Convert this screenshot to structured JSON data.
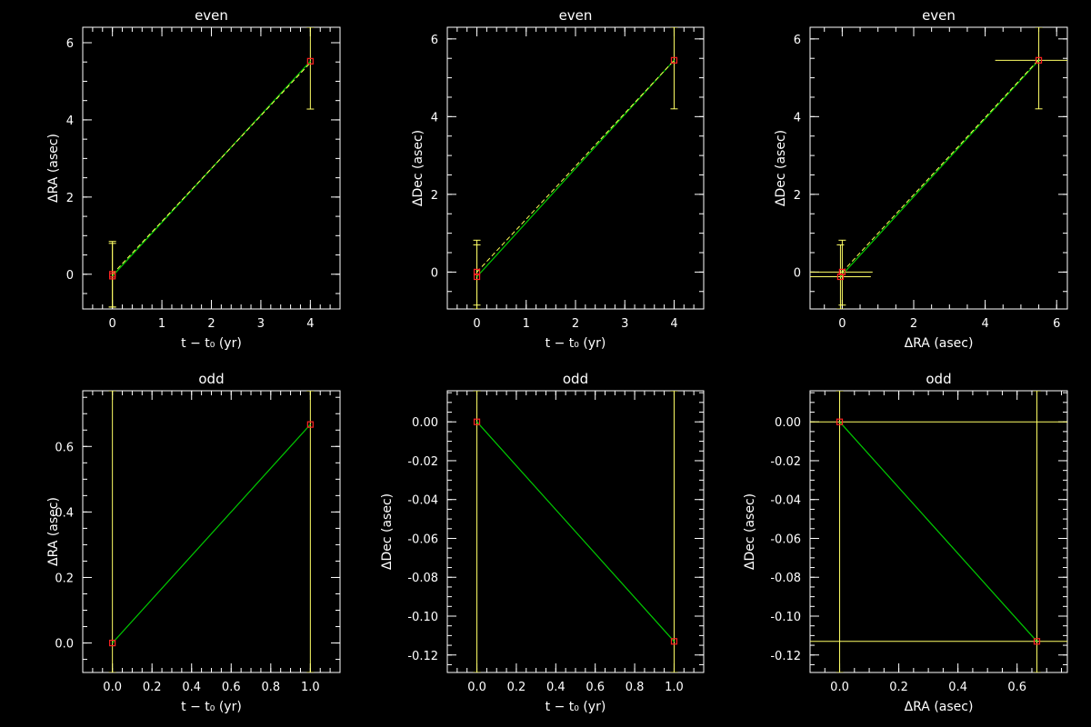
{
  "colors": {
    "background": "#000000",
    "axes": "#ffffff",
    "text": "#ffffff",
    "fit_line": "#00cc00",
    "dashed_line": "#ffff55",
    "error_bar": "#ffff66",
    "marker": "#ff2222"
  },
  "chart_data": [
    {
      "type": "scatter",
      "title": "even",
      "xlabel": "t − t₀ (yr)",
      "ylabel": "ΔRA (asec)",
      "xlim": [
        -0.6,
        4.6
      ],
      "ylim": [
        -0.9,
        6.4
      ],
      "x_ticks": [
        0,
        1,
        2,
        3,
        4
      ],
      "x_tick_labels": [
        "0",
        "1",
        "2",
        "3",
        "4"
      ],
      "x_minor_step": 0.2,
      "y_ticks": [
        0,
        2,
        4,
        6
      ],
      "y_tick_labels": [
        "0",
        "2",
        "4",
        "6"
      ],
      "y_minor_step": 0.5,
      "points": [
        {
          "x": 0,
          "y": -0.05,
          "yerr_lo": -0.85,
          "yerr_hi": 0.8
        },
        {
          "x": 0,
          "y": 0.0,
          "yerr_lo": -0.85,
          "yerr_hi": 0.85
        },
        {
          "x": 4,
          "y": 5.52,
          "yerr_lo": 4.28,
          "yerr_hi": 6.4
        }
      ],
      "fit_line": [
        [
          0,
          -0.05
        ],
        [
          4,
          5.52
        ]
      ],
      "dashed_line": [
        [
          0,
          0.0
        ],
        [
          4,
          5.48
        ]
      ]
    },
    {
      "type": "scatter",
      "title": "even",
      "xlabel": "t − t₀ (yr)",
      "ylabel": "ΔDec (asec)",
      "xlim": [
        -0.6,
        4.6
      ],
      "ylim": [
        -0.95,
        6.3
      ],
      "x_ticks": [
        0,
        1,
        2,
        3,
        4
      ],
      "x_tick_labels": [
        "0",
        "1",
        "2",
        "3",
        "4"
      ],
      "x_minor_step": 0.2,
      "y_ticks": [
        0,
        2,
        4,
        6
      ],
      "y_tick_labels": [
        "0",
        "2",
        "4",
        "6"
      ],
      "y_minor_step": 0.5,
      "points": [
        {
          "x": 0,
          "y": -0.12,
          "yerr_lo": -0.95,
          "yerr_hi": 0.7
        },
        {
          "x": 0,
          "y": 0.0,
          "yerr_lo": -0.85,
          "yerr_hi": 0.82
        },
        {
          "x": 4,
          "y": 5.45,
          "yerr_lo": 4.2,
          "yerr_hi": 6.3
        }
      ],
      "fit_line": [
        [
          0,
          -0.12
        ],
        [
          4,
          5.45
        ]
      ],
      "dashed_line": [
        [
          0,
          0.0
        ],
        [
          4,
          5.45
        ]
      ]
    },
    {
      "type": "scatter",
      "title": "even",
      "xlabel": "ΔRA (asec)",
      "ylabel": "ΔDec (asec)",
      "xlim": [
        -0.9,
        6.3
      ],
      "ylim": [
        -0.95,
        6.3
      ],
      "x_ticks": [
        0,
        2,
        4,
        6
      ],
      "x_tick_labels": [
        "0",
        "2",
        "4",
        "6"
      ],
      "x_minor_step": 0.5,
      "y_ticks": [
        0,
        2,
        4,
        6
      ],
      "y_tick_labels": [
        "0",
        "2",
        "4",
        "6"
      ],
      "y_minor_step": 0.5,
      "points": [
        {
          "x": -0.05,
          "y": -0.12,
          "xerr_lo": -0.9,
          "xerr_hi": 0.8,
          "yerr_lo": -0.95,
          "yerr_hi": 0.7
        },
        {
          "x": 0.0,
          "y": 0.0,
          "xerr_lo": -0.9,
          "xerr_hi": 0.85,
          "yerr_lo": -0.85,
          "yerr_hi": 0.82
        },
        {
          "x": 5.5,
          "y": 5.45,
          "xerr_lo": 4.28,
          "xerr_hi": 6.3,
          "yerr_lo": 4.2,
          "yerr_hi": 6.3
        }
      ],
      "fit_line": [
        [
          -0.05,
          -0.12
        ],
        [
          5.5,
          5.45
        ]
      ],
      "dashed_line": [
        [
          0.0,
          0.0
        ],
        [
          5.48,
          5.45
        ]
      ]
    },
    {
      "type": "scatter",
      "title": "odd",
      "xlabel": "t − t₀ (yr)",
      "ylabel": "ΔRA (asec)",
      "xlim": [
        -0.15,
        1.15
      ],
      "ylim": [
        -0.09,
        0.77
      ],
      "x_ticks": [
        0.0,
        0.2,
        0.4,
        0.6,
        0.8,
        1.0
      ],
      "x_tick_labels": [
        "0.0",
        "0.2",
        "0.4",
        "0.6",
        "0.8",
        "1.0"
      ],
      "x_minor_step": 0.05,
      "y_ticks": [
        0.0,
        0.2,
        0.4,
        0.6
      ],
      "y_tick_labels": [
        "0.0",
        "0.2",
        "0.4",
        "0.6"
      ],
      "y_minor_step": 0.05,
      "points": [
        {
          "x": 0.0,
          "y": 0.0,
          "yerr_lo": -0.09,
          "yerr_hi": 0.77
        },
        {
          "x": 1.0,
          "y": 0.667,
          "yerr_lo": -0.09,
          "yerr_hi": 0.77
        }
      ],
      "fit_line": [
        [
          0.0,
          0.0
        ],
        [
          1.0,
          0.667
        ]
      ],
      "dashed_line": []
    },
    {
      "type": "scatter",
      "title": "odd",
      "xlabel": "t − t₀ (yr)",
      "ylabel": "ΔDec (asec)",
      "xlim": [
        -0.15,
        1.15
      ],
      "ylim": [
        -0.129,
        0.016
      ],
      "x_ticks": [
        0.0,
        0.2,
        0.4,
        0.6,
        0.8,
        1.0
      ],
      "x_tick_labels": [
        "0.0",
        "0.2",
        "0.4",
        "0.6",
        "0.8",
        "1.0"
      ],
      "x_minor_step": 0.05,
      "y_ticks": [
        0.0,
        -0.02,
        -0.04,
        -0.06,
        -0.08,
        -0.1,
        -0.12
      ],
      "y_tick_labels": [
        "0.00",
        "-0.02",
        "-0.04",
        "-0.06",
        "-0.08",
        "-0.10",
        "-0.12"
      ],
      "y_minor_step": 0.005,
      "points": [
        {
          "x": 0.0,
          "y": 0.0,
          "yerr_lo": -0.129,
          "yerr_hi": 0.016
        },
        {
          "x": 1.0,
          "y": -0.113,
          "yerr_lo": -0.129,
          "yerr_hi": 0.016
        }
      ],
      "fit_line": [
        [
          0.0,
          0.0
        ],
        [
          1.0,
          -0.113
        ]
      ],
      "dashed_line": []
    },
    {
      "type": "scatter",
      "title": "odd",
      "xlabel": "ΔRA (asec)",
      "ylabel": "ΔDec (asec)",
      "xlim": [
        -0.1,
        0.77
      ],
      "ylim": [
        -0.129,
        0.016
      ],
      "x_ticks": [
        0.0,
        0.2,
        0.4,
        0.6
      ],
      "x_tick_labels": [
        "0.0",
        "0.2",
        "0.4",
        "0.6"
      ],
      "x_minor_step": 0.05,
      "y_ticks": [
        0.0,
        -0.02,
        -0.04,
        -0.06,
        -0.08,
        -0.1,
        -0.12
      ],
      "y_tick_labels": [
        "0.00",
        "-0.02",
        "-0.04",
        "-0.06",
        "-0.08",
        "-0.10",
        "-0.12"
      ],
      "y_minor_step": 0.005,
      "points": [
        {
          "x": 0.0,
          "y": 0.0,
          "xerr_lo": -0.1,
          "xerr_hi": 0.77,
          "yerr_lo": -0.129,
          "yerr_hi": 0.016
        },
        {
          "x": 0.667,
          "y": -0.113,
          "xerr_lo": -0.1,
          "xerr_hi": 0.77,
          "yerr_lo": -0.129,
          "yerr_hi": 0.016
        }
      ],
      "fit_line": [
        [
          0.0,
          0.0
        ],
        [
          0.667,
          -0.113
        ]
      ],
      "dashed_line": []
    }
  ]
}
